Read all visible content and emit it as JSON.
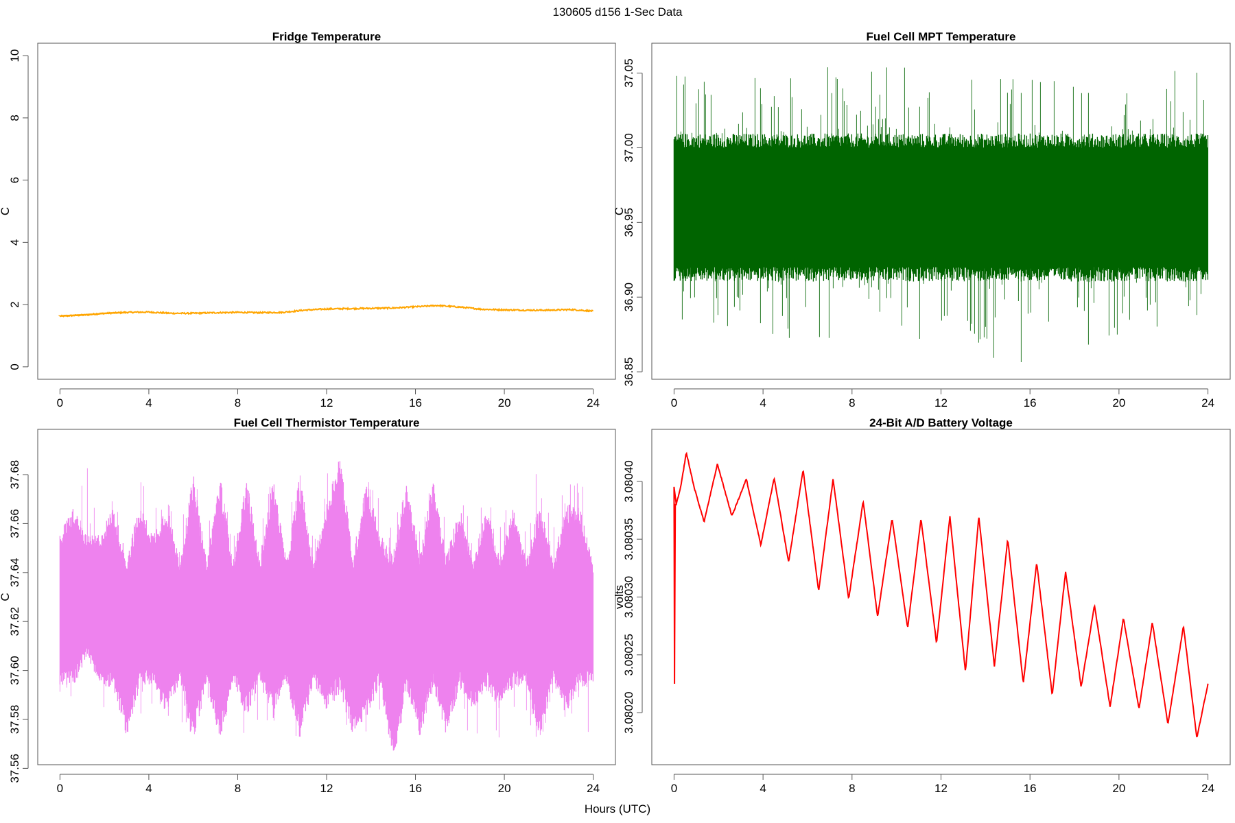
{
  "figure": {
    "title": "130605   d156   1-Sec Data",
    "xlabel": "Hours (UTC)"
  },
  "chart_data": [
    {
      "id": "fridge",
      "type": "line",
      "title": "Fridge Temperature",
      "ylabel": "C",
      "color": "#FFA500",
      "xlim": [
        -1,
        25
      ],
      "ylim": [
        -0.4,
        10.4
      ],
      "xticks": [
        0,
        4,
        8,
        12,
        16,
        20,
        24
      ],
      "xtick_labels": [
        "0",
        "4",
        "8",
        "12",
        "16",
        "20",
        "24"
      ],
      "yticks": [
        0,
        2,
        4,
        6,
        8,
        10
      ],
      "ytick_labels": [
        "0",
        "2",
        "4",
        "6",
        "8",
        "10"
      ],
      "series": [
        {
          "name": "Fridge Temperature",
          "style": "line",
          "x": [
            0,
            1,
            2,
            3,
            4,
            5,
            6,
            7,
            8,
            9,
            10,
            11,
            12,
            13,
            14,
            15,
            16,
            17,
            18,
            19,
            20,
            21,
            22,
            23,
            24
          ],
          "y": [
            1.63,
            1.66,
            1.72,
            1.75,
            1.76,
            1.72,
            1.72,
            1.74,
            1.75,
            1.74,
            1.75,
            1.82,
            1.86,
            1.87,
            1.88,
            1.89,
            1.93,
            1.97,
            1.92,
            1.85,
            1.83,
            1.82,
            1.82,
            1.84,
            1.79
          ]
        }
      ]
    },
    {
      "id": "mpt",
      "type": "line",
      "title": "Fuel Cell MPT Temperature",
      "ylabel": "C",
      "color": "#006400",
      "xlim": [
        -1,
        25
      ],
      "ylim": [
        36.845,
        37.07
      ],
      "xticks": [
        0,
        4,
        8,
        12,
        16,
        20,
        24
      ],
      "xtick_labels": [
        "0",
        "4",
        "8",
        "12",
        "16",
        "20",
        "24"
      ],
      "yticks": [
        36.85,
        36.9,
        36.95,
        37.0,
        37.05
      ],
      "ytick_labels": [
        "36.85",
        "36.90",
        "36.95",
        "37.00",
        "37.05"
      ],
      "series": [
        {
          "name": "MPT band",
          "style": "band",
          "x": [
            0,
            4,
            8,
            12,
            16,
            20,
            24
          ],
          "lower": [
            36.92,
            36.92,
            36.92,
            36.92,
            36.92,
            36.92,
            36.92
          ],
          "upper": [
            37.0,
            37.0,
            37.0,
            37.0,
            37.0,
            37.0,
            37.0
          ],
          "min": [
            36.88,
            36.87,
            36.87,
            36.87,
            36.85,
            36.87,
            36.89
          ],
          "max": [
            37.05,
            37.05,
            37.06,
            37.05,
            37.05,
            37.04,
            37.06
          ]
        }
      ]
    },
    {
      "id": "thermistor",
      "type": "line",
      "title": "Fuel Cell Thermistor Temperature",
      "ylabel": "C",
      "color": "#EE82EE",
      "xlim": [
        -1,
        25
      ],
      "ylim": [
        37.5615,
        37.6985
      ],
      "xticks": [
        0,
        4,
        8,
        12,
        16,
        20,
        24
      ],
      "xtick_labels": [
        "0",
        "4",
        "8",
        "12",
        "16",
        "20",
        "24"
      ],
      "yticks": [
        37.56,
        37.58,
        37.6,
        37.62,
        37.64,
        37.66,
        37.68
      ],
      "ytick_labels": [
        "37.56",
        "37.58",
        "37.60",
        "37.62",
        "37.64",
        "37.66",
        "37.68"
      ],
      "series": [
        {
          "name": "Thermistor band",
          "style": "band",
          "x": [
            0,
            0.6,
            1.2,
            1.8,
            2.4,
            3.0,
            3.6,
            4.2,
            4.8,
            5.4,
            6.0,
            6.6,
            7.2,
            7.8,
            8.4,
            9.0,
            9.6,
            10.2,
            10.8,
            11.4,
            12.0,
            12.6,
            13.2,
            13.8,
            14.4,
            15.0,
            15.6,
            16.2,
            16.8,
            17.4,
            18.0,
            18.6,
            19.2,
            19.8,
            20.4,
            21.0,
            21.6,
            22.2,
            22.8,
            23.4,
            24.0
          ],
          "lower": [
            37.6,
            37.6,
            37.61,
            37.6,
            37.6,
            37.58,
            37.6,
            37.6,
            37.59,
            37.6,
            37.58,
            37.6,
            37.58,
            37.6,
            37.59,
            37.6,
            37.59,
            37.6,
            37.58,
            37.6,
            37.59,
            37.6,
            37.58,
            37.59,
            37.6,
            37.57,
            37.6,
            37.58,
            37.6,
            37.58,
            37.6,
            37.59,
            37.6,
            37.59,
            37.6,
            37.6,
            37.58,
            37.6,
            37.59,
            37.6,
            37.6
          ],
          "upper": [
            37.65,
            37.66,
            37.65,
            37.65,
            37.66,
            37.64,
            37.66,
            37.65,
            37.66,
            37.64,
            37.67,
            37.64,
            37.67,
            37.64,
            37.67,
            37.64,
            37.67,
            37.64,
            37.67,
            37.64,
            37.66,
            37.68,
            37.64,
            37.67,
            37.65,
            37.64,
            37.67,
            37.64,
            37.67,
            37.64,
            37.66,
            37.64,
            37.66,
            37.64,
            37.66,
            37.64,
            37.66,
            37.64,
            37.66,
            37.66,
            37.64
          ],
          "min": [
            37.58,
            37.58,
            37.59,
            37.58,
            37.58,
            37.58,
            37.58,
            37.58,
            37.58,
            37.58,
            37.57,
            37.59,
            37.57,
            37.58,
            37.57,
            37.58,
            37.57,
            37.58,
            37.57,
            37.59,
            37.57,
            37.58,
            37.57,
            37.57,
            37.58,
            37.565,
            37.58,
            37.57,
            37.58,
            37.565,
            37.58,
            37.57,
            37.58,
            37.57,
            37.58,
            37.58,
            37.57,
            37.58,
            37.58,
            37.58,
            37.57
          ],
          "max": [
            37.66,
            37.67,
            37.685,
            37.67,
            37.67,
            37.66,
            37.68,
            37.67,
            37.68,
            37.66,
            37.68,
            37.66,
            37.685,
            37.66,
            37.68,
            37.66,
            37.68,
            37.66,
            37.685,
            37.66,
            37.68,
            37.69,
            37.66,
            37.68,
            37.67,
            37.66,
            37.68,
            37.66,
            37.68,
            37.66,
            37.675,
            37.66,
            37.675,
            37.66,
            37.675,
            37.66,
            37.69,
            37.66,
            37.68,
            37.68,
            37.66
          ]
        }
      ]
    },
    {
      "id": "battery",
      "type": "line",
      "title": "24-Bit A/D Battery Voltage",
      "ylabel": "volts",
      "color": "#FF0000",
      "xlim": [
        -1,
        25
      ],
      "ylim": [
        3.080155,
        3.080445
      ],
      "xticks": [
        0,
        4,
        8,
        12,
        16,
        20,
        24
      ],
      "xtick_labels": [
        "0",
        "4",
        "8",
        "12",
        "16",
        "20",
        "24"
      ],
      "yticks": [
        3.0802,
        3.08025,
        3.0803,
        3.08035,
        3.0804
      ],
      "ytick_labels": [
        "3.08020",
        "3.08025",
        "3.08030",
        "3.08035",
        "3.08040"
      ],
      "series": [
        {
          "name": "Battery Voltage",
          "style": "line",
          "x": [
            0,
            0.02,
            0.05,
            0.1,
            0.3,
            0.55,
            0.9,
            1.35,
            1.95,
            2.6,
            3.25,
            3.9,
            4.5,
            5.15,
            5.8,
            6.5,
            7.15,
            7.85,
            8.5,
            9.15,
            9.8,
            10.5,
            11.1,
            11.8,
            12.4,
            13.1,
            13.7,
            14.4,
            15.0,
            15.7,
            16.3,
            17.0,
            17.6,
            18.3,
            18.9,
            19.6,
            20.2,
            20.9,
            21.5,
            22.2,
            22.9,
            23.5,
            24.0
          ],
          "y": [
            3.080395,
            3.080225,
            3.08038,
            3.08038,
            3.080395,
            3.080425,
            3.080395,
            3.080365,
            3.080415,
            3.08037,
            3.080402,
            3.080345,
            3.080403,
            3.08033,
            3.08041,
            3.080305,
            3.080402,
            3.080298,
            3.080383,
            3.080283,
            3.080368,
            3.080273,
            3.080368,
            3.08026,
            3.08037,
            3.080235,
            3.08037,
            3.08024,
            3.08035,
            3.080225,
            3.08033,
            3.080215,
            3.080322,
            3.080222,
            3.080293,
            3.080205,
            3.080282,
            3.080203,
            3.080278,
            3.08019,
            3.080275,
            3.080178,
            3.080225
          ]
        }
      ]
    }
  ]
}
